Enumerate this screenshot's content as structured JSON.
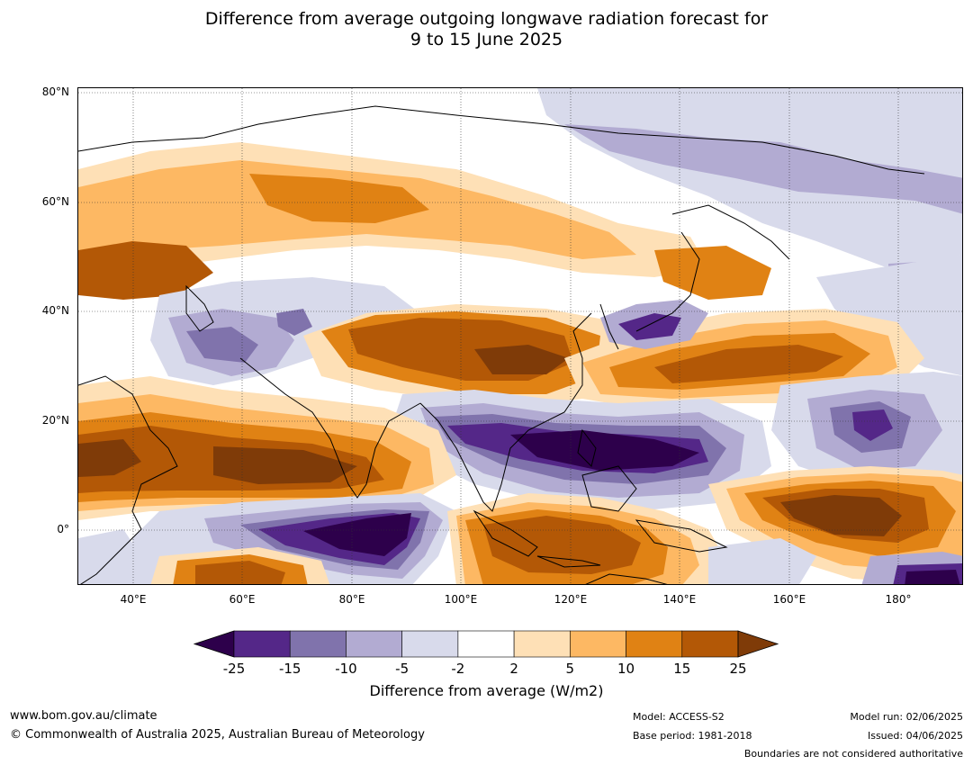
{
  "title_line1": "Difference from average outgoing longwave radiation forecast for",
  "title_line2": "9 to 15 June 2025",
  "lat_labels": [
    "80°N",
    "60°N",
    "40°N",
    "20°N",
    "0°"
  ],
  "lon_labels": [
    "40°E",
    "60°E",
    "80°E",
    "100°E",
    "120°E",
    "140°E",
    "160°E",
    "180°"
  ],
  "colorbar": {
    "ticks": [
      "-25",
      "-15",
      "-10",
      "-5",
      "-2",
      "2",
      "5",
      "10",
      "15",
      "25"
    ],
    "colors": [
      "#2d004b",
      "#542788",
      "#8073ac",
      "#b2abd2",
      "#d8daeb",
      "#ffffff",
      "#fee0b6",
      "#fdb863",
      "#e08214",
      "#b35806",
      "#7f3b08"
    ],
    "label": "Difference from average (W/m2)"
  },
  "footer": {
    "url": "www.bom.gov.au/climate",
    "copyright": "© Commonwealth of Australia 2025, Australian Bureau of Meteorology",
    "model": "Model: ACCESS-S2",
    "base_period": "Base period: 1981-2018",
    "model_run": "Model run: 02/06/2025",
    "issued": "Issued: 04/06/2025",
    "disclaimer": "Boundaries are not considered authoritative"
  }
}
